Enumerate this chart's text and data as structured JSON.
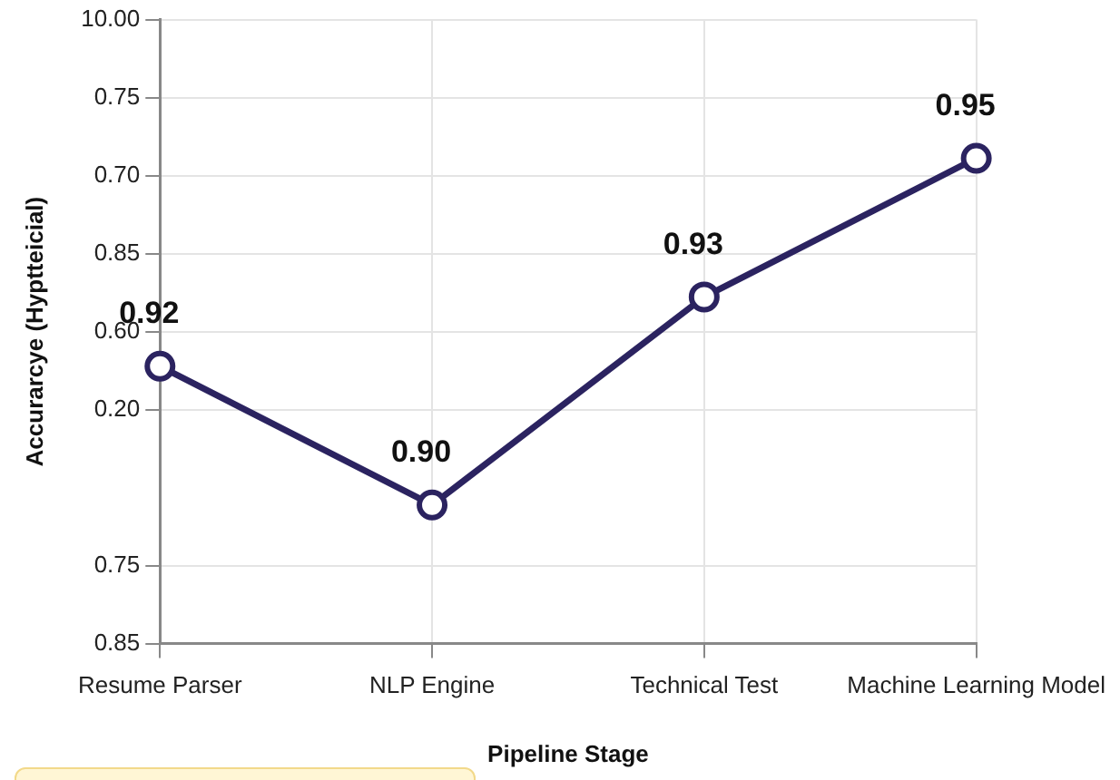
{
  "chart_data": {
    "type": "line",
    "xlabel": "Pipeline Stage",
    "ylabel": "Accurarcye (Hyptteicial)",
    "categories": [
      "Resume Parser",
      "NLP Engine",
      "Technical Test",
      "Machine Learning Model"
    ],
    "y_categories": [
      "10.00",
      "0.75",
      "0.70",
      "0.85",
      "0.60",
      "0.20",
      null,
      "0.75",
      "0.85"
    ],
    "series": [
      {
        "color": "#2b2360",
        "values": [
          0.92,
          0.9,
          0.93,
          0.95
        ],
        "value_labels": [
          "0.92",
          "0.90",
          "0.93",
          "0.95"
        ]
      }
    ],
    "grid": true,
    "marker": "circle",
    "line_style": "solid"
  }
}
